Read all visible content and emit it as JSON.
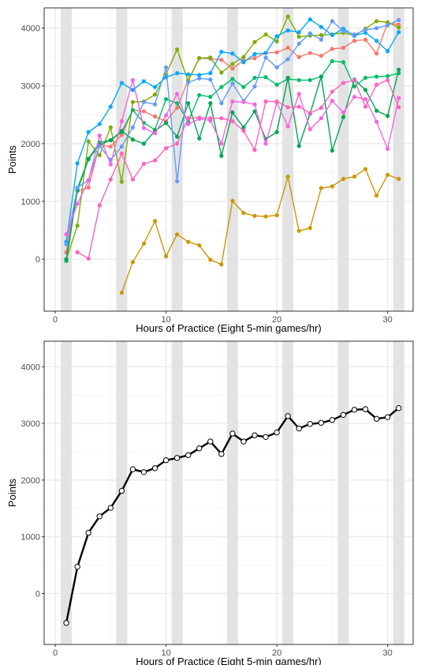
{
  "chart_data": [
    {
      "type": "line",
      "title": "",
      "xlabel": "Hours of Practice (Eight 5-min games/hr)",
      "ylabel": "Points",
      "xlim": [
        -1,
        32.3
      ],
      "ylim": [
        -900,
        4350
      ],
      "x_ticks": [
        0,
        10,
        20,
        30
      ],
      "y_ticks": [
        0,
        1000,
        2000,
        3000,
        4000
      ],
      "grid": true,
      "shaded_bands": [
        [
          0.5,
          1.5
        ],
        [
          5.5,
          6.5
        ],
        [
          10.5,
          11.5
        ],
        [
          15.5,
          16.5
        ],
        [
          20.5,
          21.5
        ],
        [
          25.5,
          26.5
        ],
        [
          30.5,
          31.5
        ]
      ],
      "series": [
        {
          "color": "#F8766D",
          "x": [
            1,
            2,
            3,
            4,
            5,
            6,
            7,
            8,
            9,
            10,
            11,
            12,
            13,
            14,
            15,
            16,
            17,
            18,
            19,
            20,
            21,
            22,
            23,
            24,
            25,
            26,
            27,
            28,
            29,
            30,
            31
          ],
          "y": [
            120,
            1180,
            1240,
            1980,
            1950,
            2150,
            2580,
            2560,
            2470,
            2390,
            2620,
            3100,
            3480,
            3470,
            3450,
            3300,
            3440,
            3480,
            3570,
            3580,
            3660,
            3500,
            3570,
            3520,
            3640,
            3660,
            3780,
            3800,
            3560,
            4090,
            4060
          ]
        },
        {
          "color": "#CD9600",
          "x": [
            6,
            7,
            8,
            9,
            10,
            11,
            12,
            13,
            14,
            15,
            16,
            17,
            18,
            19,
            20,
            21,
            22,
            23,
            24,
            25,
            26,
            27,
            28,
            29,
            30,
            31
          ],
          "y": [
            -580,
            -50,
            270,
            660,
            50,
            430,
            300,
            240,
            -10,
            -90,
            1010,
            800,
            750,
            740,
            760,
            1430,
            490,
            540,
            1230,
            1260,
            1390,
            1430,
            1560,
            1100,
            1460,
            1390
          ]
        },
        {
          "color": "#7CAE00",
          "x": [
            1,
            2,
            3,
            4,
            5,
            6,
            7,
            8,
            9,
            10,
            11,
            12,
            13,
            14,
            15,
            16,
            17,
            18,
            19,
            20,
            21,
            22,
            23,
            24,
            25,
            26,
            27,
            28,
            29,
            30,
            31
          ],
          "y": [
            0,
            580,
            2040,
            1800,
            2280,
            1340,
            2720,
            2730,
            2850,
            3200,
            3630,
            3080,
            3480,
            3490,
            3230,
            3380,
            3500,
            3760,
            3890,
            3770,
            4200,
            3850,
            3870,
            3880,
            3890,
            3920,
            3870,
            3990,
            4120,
            4100,
            4010
          ]
        },
        {
          "color": "#00A9FF",
          "x": [
            1,
            2,
            3,
            4,
            5,
            6,
            7,
            8,
            9,
            10,
            11,
            12,
            13,
            14,
            15,
            16,
            17,
            18,
            19,
            20,
            21,
            22,
            23,
            24,
            25,
            26,
            27,
            28,
            29,
            30,
            31
          ],
          "y": [
            300,
            1660,
            2200,
            2340,
            2640,
            3050,
            2930,
            3080,
            2980,
            3150,
            3220,
            3200,
            3190,
            3220,
            3590,
            3560,
            3410,
            3550,
            3570,
            3860,
            3960,
            3930,
            4150,
            4020,
            3880,
            3990,
            3870,
            3920,
            3780,
            3600,
            3930
          ]
        },
        {
          "color": "#00BE67",
          "x": [
            1,
            2,
            3,
            4,
            5,
            6,
            7,
            8,
            9,
            10,
            11,
            12,
            13,
            14,
            15,
            16,
            17,
            18,
            19,
            20,
            21,
            22,
            23,
            24,
            25,
            26,
            27,
            28,
            29,
            30,
            31
          ],
          "y": [
            -30,
            1220,
            1740,
            2020,
            2060,
            2200,
            2580,
            2360,
            2240,
            2770,
            2700,
            2380,
            2840,
            2810,
            2980,
            3120,
            2980,
            3140,
            3150,
            3020,
            3120,
            3100,
            3100,
            3160,
            3430,
            3410,
            2990,
            3140,
            3160,
            3170,
            3220
          ]
        },
        {
          "color": "#00A651",
          "x": [
            1,
            2,
            3,
            4,
            5,
            6,
            7,
            8,
            9,
            10,
            11,
            12,
            13,
            14,
            15,
            16,
            17,
            18,
            19,
            20,
            21,
            22,
            23,
            24,
            25,
            26,
            27,
            28,
            29,
            30,
            31
          ],
          "y": [
            0,
            1190,
            1730,
            1980,
            2060,
            2220,
            2070,
            2000,
            2220,
            2360,
            2120,
            2700,
            2090,
            2700,
            1790,
            2540,
            2280,
            2560,
            2080,
            2200,
            3140,
            1960,
            2520,
            3160,
            1880,
            2460,
            3110,
            2930,
            2570,
            2480,
            3280
          ]
        },
        {
          "color": "#619CFF",
          "x": [
            1,
            2,
            3,
            4,
            5,
            6,
            7,
            8,
            9,
            10,
            11,
            12,
            13,
            14,
            15,
            16,
            17,
            18,
            19,
            20,
            21,
            22,
            23,
            24,
            25,
            26,
            27,
            28,
            29,
            30,
            31
          ],
          "y": [
            260,
            1240,
            1370,
            1960,
            1720,
            1950,
            2280,
            2720,
            2680,
            3320,
            1350,
            3060,
            3130,
            3110,
            2700,
            3040,
            2740,
            2990,
            3490,
            3320,
            3460,
            3730,
            3910,
            3800,
            4120,
            3950,
            3890,
            3970,
            4000,
            4050,
            4140
          ]
        },
        {
          "color": "#F564E3",
          "x": [
            1,
            2,
            3,
            4,
            5,
            6,
            7,
            8,
            9,
            10,
            11,
            12,
            13,
            14,
            15,
            16,
            17,
            18,
            19,
            20,
            21,
            22,
            23,
            24,
            25,
            26,
            27,
            28,
            29,
            30,
            31
          ],
          "y": [
            430,
            960,
            1360,
            2140,
            1640,
            2390,
            3100,
            2270,
            2180,
            2490,
            2860,
            2340,
            2430,
            2400,
            2000,
            2730,
            2720,
            2680,
            2000,
            2710,
            2300,
            2860,
            2250,
            2440,
            2740,
            2540,
            2810,
            2770,
            2380,
            1910,
            2790
          ]
        },
        {
          "color": "#FF62BC",
          "x": [
            2,
            3,
            4,
            5,
            6,
            7,
            8,
            9,
            10,
            11,
            12,
            13,
            14,
            15,
            16,
            17,
            18,
            19,
            20,
            21,
            22,
            23,
            24,
            25,
            26,
            27,
            28,
            29,
            30,
            31
          ],
          "y": [
            120,
            10,
            930,
            1380,
            1830,
            1380,
            1650,
            1710,
            1920,
            2000,
            2440,
            2450,
            2440,
            2440,
            2390,
            2220,
            1890,
            2730,
            2730,
            2630,
            2640,
            2530,
            2620,
            2900,
            3050,
            3100,
            2640,
            3020,
            3100,
            2630
          ]
        }
      ]
    },
    {
      "type": "line",
      "title": "",
      "xlabel": "Hours of Practice (Eight 5-min games/hr)",
      "ylabel": "Points",
      "xlim": [
        -1,
        32.3
      ],
      "ylim": [
        -900,
        4450
      ],
      "x_ticks": [
        0,
        10,
        20,
        30
      ],
      "y_ticks": [
        0,
        1000,
        2000,
        3000,
        4000
      ],
      "grid": true,
      "shaded_bands": [
        [
          0.5,
          1.5
        ],
        [
          5.5,
          6.5
        ],
        [
          10.5,
          11.5
        ],
        [
          15.5,
          16.5
        ],
        [
          20.5,
          21.5
        ],
        [
          25.5,
          26.5
        ],
        [
          30.5,
          31.5
        ]
      ],
      "series": [
        {
          "color": "#000000",
          "x": [
            1,
            2,
            3,
            4,
            5,
            6,
            7,
            8,
            9,
            10,
            11,
            12,
            13,
            14,
            15,
            16,
            17,
            18,
            19,
            20,
            21,
            22,
            23,
            24,
            25,
            26,
            27,
            28,
            29,
            30,
            31
          ],
          "y": [
            -520,
            470,
            1070,
            1360,
            1510,
            1810,
            2190,
            2140,
            2210,
            2350,
            2390,
            2440,
            2560,
            2680,
            2460,
            2820,
            2680,
            2790,
            2760,
            2840,
            3130,
            2910,
            2990,
            3010,
            3060,
            3150,
            3240,
            3250,
            3080,
            3110,
            3270
          ]
        }
      ]
    }
  ]
}
